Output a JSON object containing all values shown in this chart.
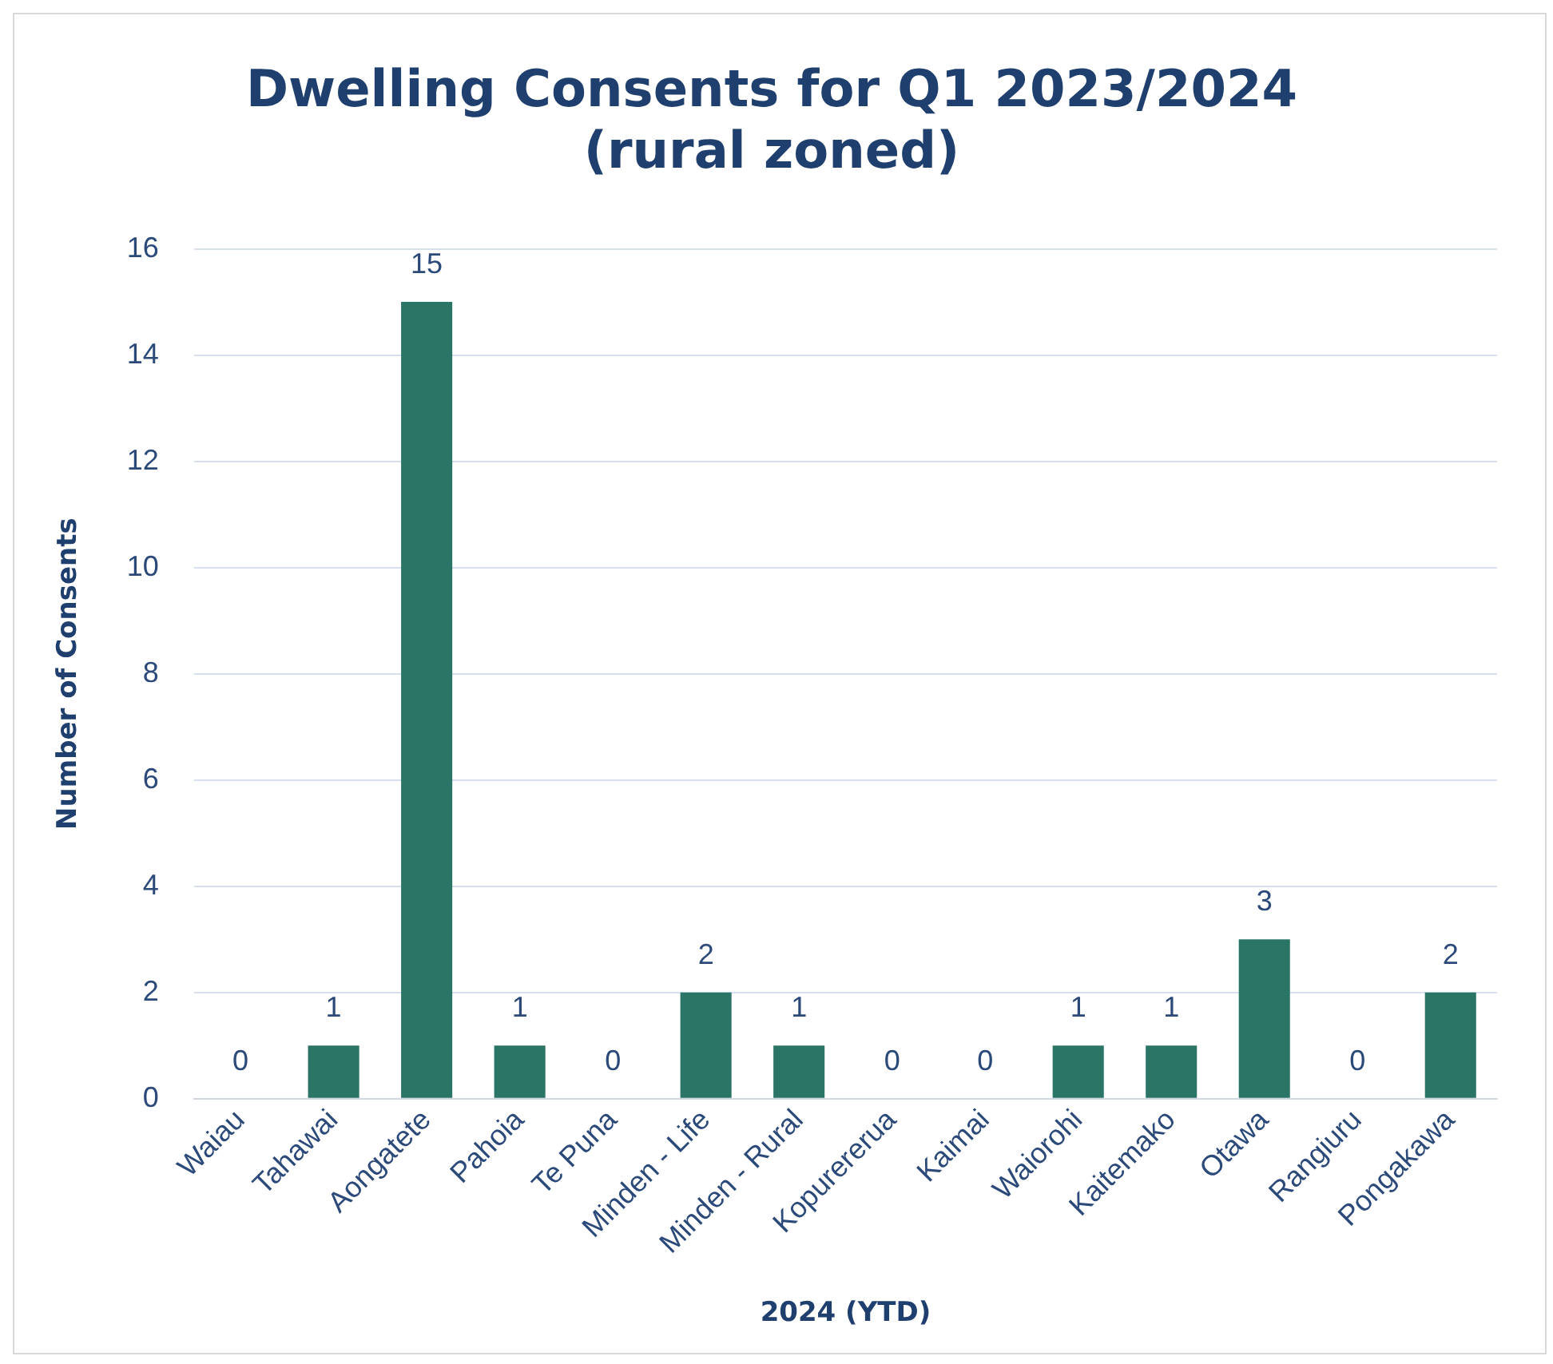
{
  "chart_data": {
    "type": "bar",
    "title": "Dwelling Consents for Q1 2023/2024\n(rural zoned)",
    "xlabel": "2024 (YTD)",
    "ylabel": "Number of Consents",
    "categories": [
      "Waiau",
      "Tahawai",
      "Aongatete",
      "Pahoia",
      "Te Puna",
      "Minden - Life",
      "Minden - Rural",
      "Kopurererua",
      "Kaimai",
      "Waiorohi",
      "Kaitemako",
      "Otawa",
      "Rangiuru",
      "Pongakawa"
    ],
    "values": [
      0,
      1,
      15,
      1,
      0,
      2,
      1,
      0,
      0,
      1,
      1,
      3,
      0,
      2
    ],
    "color": "#2a7566",
    "ylim": [
      0,
      16
    ],
    "yticks": [
      0,
      2,
      4,
      6,
      8,
      10,
      12,
      14,
      16
    ],
    "grid": "y",
    "data_labels": true
  }
}
